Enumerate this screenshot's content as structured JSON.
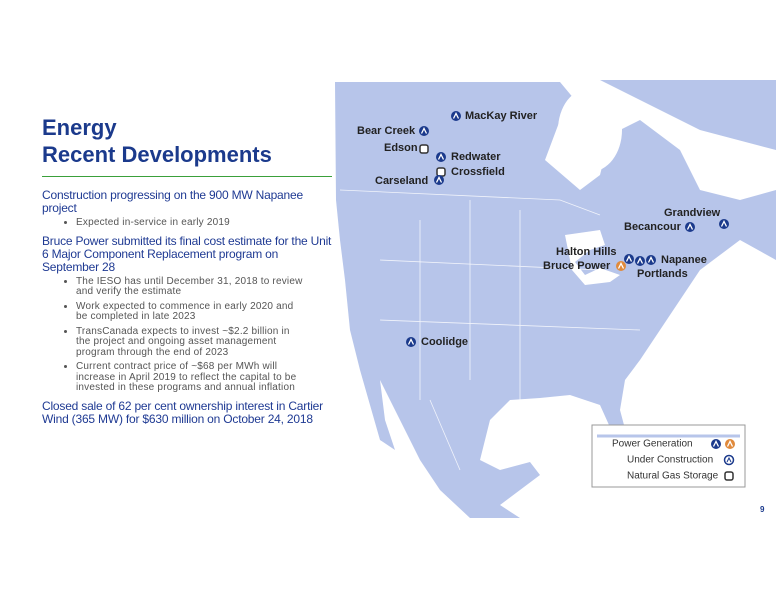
{
  "header": {
    "title_lines": [
      "Energy",
      "Recent Developments"
    ]
  },
  "items": [
    {
      "text": "Construction progressing on the 900 MW Napanee project",
      "bullets": [
        "Expected in-service in early 2019"
      ]
    },
    {
      "text": "Bruce Power submitted its final cost estimate for the Unit 6 Major Component Replacement program on September 28",
      "bullets": [
        "The IESO has until December 31, 2018 to review and verify the estimate",
        "Work expected to commence in early 2020 and be completed in late 2023",
        "TransCanada expects to invest ~$2.2 billion in the project and ongoing asset management program through the end of 2023",
        "Current contract price of ~$68 per MWh will increase in April 2019 to reflect the capital to be invested in these programs and annual inflation"
      ]
    },
    {
      "text": "Closed sale of 62 per cent ownership interest in Cartier Wind (365 MW) for $630 million on October 24, 2018",
      "bullets": []
    }
  ],
  "map": {
    "locations": [
      "MacKay River",
      "Bear Creek",
      "Edson",
      "Redwater",
      "Crossfield",
      "Carseland",
      "Grandview",
      "Becancour",
      "Halton Hills",
      "Bruce Power",
      "Napanee",
      "Portlands",
      "Coolidge"
    ],
    "legend": [
      "Power Generation",
      "Under Construction",
      "Natural Gas Storage"
    ]
  },
  "footer": {
    "page_number": "9"
  }
}
